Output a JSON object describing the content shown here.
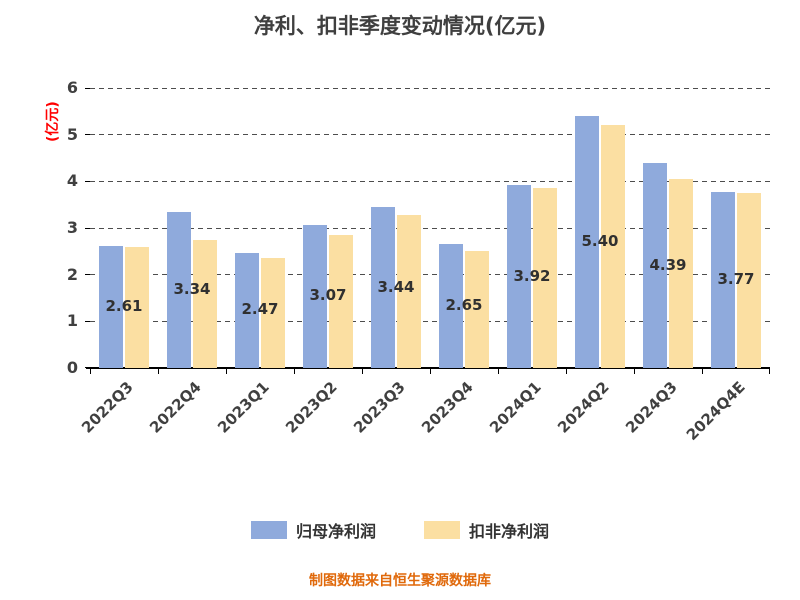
{
  "title": "净利、扣非季度变动情况(亿元)",
  "y_axis_label": "(亿元)",
  "footer": "制图数据来自恒生聚源数据库",
  "colors": {
    "series_blue": "#8FAADC",
    "series_orange": "#FBDFA2",
    "title_text": "#3F3F3F",
    "axis_text": "#404040",
    "y_axis_label_text": "#FF0000",
    "footer_text": "#E0690B",
    "axis_line": "#000000",
    "gridline": "#4D4D4D"
  },
  "legend": [
    {
      "label": "归母净利润",
      "color": "#8FAADC"
    },
    {
      "label": "扣非净利润",
      "color": "#FBDFA2"
    }
  ],
  "chart_data": {
    "type": "bar",
    "title": "净利、扣非季度变动情况(亿元)",
    "ylabel": "(亿元)",
    "xlabel": "",
    "categories": [
      "2022Q3",
      "2022Q4",
      "2023Q1",
      "2023Q2",
      "2023Q3",
      "2023Q4",
      "2024Q1",
      "2024Q2",
      "2024Q3",
      "2024Q4E"
    ],
    "series": [
      {
        "name": "归母净利润",
        "color": "#8FAADC",
        "values": [
          2.61,
          3.34,
          2.47,
          3.07,
          3.44,
          2.65,
          3.92,
          5.4,
          4.39,
          3.77
        ]
      },
      {
        "name": "扣非净利润",
        "color": "#FBDFA2",
        "values": [
          2.6,
          2.75,
          2.36,
          2.85,
          3.27,
          2.5,
          3.85,
          5.21,
          4.05,
          3.74
        ]
      }
    ],
    "bar_labels": [
      "2.61",
      "3.34",
      "2.47",
      "3.07",
      "3.44",
      "2.65",
      "3.92",
      "5.40",
      "4.39",
      "3.77"
    ],
    "ylim": [
      0,
      6
    ],
    "yticks": [
      0,
      1,
      2,
      3,
      4,
      5,
      6
    ],
    "grid": "dashed-horizontal",
    "legend_position": "bottom"
  }
}
